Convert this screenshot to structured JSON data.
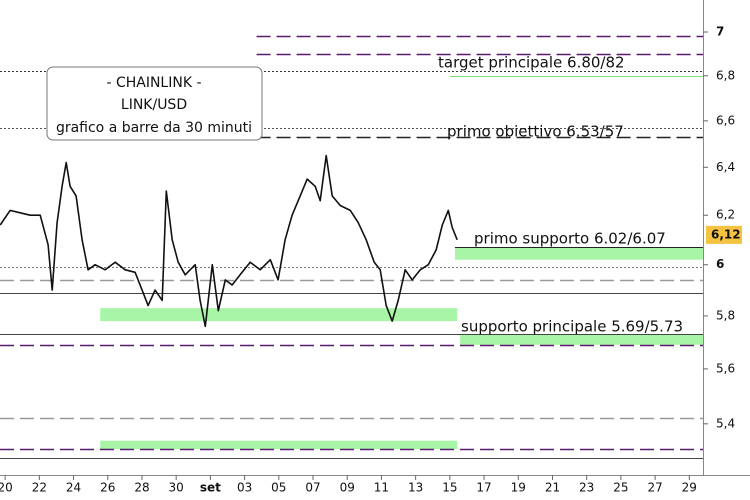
{
  "chart_data": {
    "type": "line",
    "title_box": [
      "- CHAINLINK -",
      "LINK/USD",
      "grafico a barre da 30 minuti"
    ],
    "annotations": [
      "target principale 6.80/82",
      "primo obiettivo 6.53/57",
      "primo supporto 6.02/6.07",
      "supporto principale 5.69/5.73"
    ],
    "log_scale": true,
    "xlim": [
      -0.3,
      40.8
    ],
    "xticks": [
      {
        "value": 0,
        "label": "20"
      },
      {
        "value": 2,
        "label": "22"
      },
      {
        "value": 4,
        "label": "24"
      },
      {
        "value": 6,
        "label": "26"
      },
      {
        "value": 8,
        "label": "28"
      },
      {
        "value": 10,
        "label": "30"
      },
      {
        "value": 12,
        "label": "set"
      },
      {
        "value": 14,
        "label": "03"
      },
      {
        "value": 16,
        "label": "05"
      },
      {
        "value": 18,
        "label": "07"
      },
      {
        "value": 20,
        "label": "09"
      },
      {
        "value": 22,
        "label": "11"
      },
      {
        "value": 24,
        "label": "13"
      },
      {
        "value": 26,
        "label": "15"
      },
      {
        "value": 28,
        "label": "17"
      },
      {
        "value": 30,
        "label": "19"
      },
      {
        "value": 32,
        "label": "21"
      },
      {
        "value": 34,
        "label": "23"
      },
      {
        "value": 36,
        "label": "25"
      },
      {
        "value": 38,
        "label": "27"
      },
      {
        "value": 40,
        "label": "29"
      }
    ],
    "ylim": [
      5.22,
      7.15
    ],
    "yticks": [
      {
        "value": 5.4,
        "label": "5,4"
      },
      {
        "value": 5.6,
        "label": "5,6"
      },
      {
        "value": 5.8,
        "label": "5,8"
      },
      6,
      {
        "value": 6.2,
        "label": "6,2"
      },
      {
        "value": 6.4,
        "label": "6,4"
      },
      {
        "value": 6.6,
        "label": "6,6"
      },
      {
        "value": 6.8,
        "label": "6,8"
      },
      7
    ],
    "last_price": {
      "value": 6.12,
      "label": "6,12"
    },
    "series": [
      {
        "color": "#111111",
        "x": [
          -0.29,
          0.29,
          0.88,
          1.46,
          2.05,
          2.51,
          2.75,
          3.04,
          3.33,
          3.57,
          3.8,
          4.15,
          4.5,
          4.85,
          5.26,
          5.85,
          6.43,
          7.02,
          7.6,
          8.01,
          8.36,
          8.77,
          9.18,
          9.42,
          9.77,
          10.12,
          10.53,
          11.11,
          11.4,
          11.7,
          12.11,
          12.46,
          12.87,
          13.27,
          13.74,
          14.33,
          14.91,
          15.5,
          15.96,
          16.37,
          16.78,
          17.25,
          17.66,
          18.13,
          18.42,
          18.77,
          19.12,
          19.59,
          20.18,
          20.64,
          21.11,
          21.58,
          21.93,
          22.28,
          22.63,
          22.98,
          23.39,
          23.8,
          24.27,
          24.74,
          25.2,
          25.56,
          25.91,
          26.14,
          26.43
        ],
        "values": [
          6.16,
          6.22,
          6.21,
          6.2,
          6.2,
          6.08,
          5.9,
          6.17,
          6.32,
          6.42,
          6.32,
          6.28,
          6.1,
          5.98,
          6.0,
          5.98,
          6.01,
          5.98,
          5.97,
          5.9,
          5.84,
          5.9,
          5.86,
          6.3,
          6.1,
          6.01,
          5.96,
          6.0,
          5.86,
          5.76,
          6.0,
          5.82,
          5.94,
          5.92,
          5.96,
          6.01,
          5.98,
          6.02,
          5.94,
          6.1,
          6.2,
          6.28,
          6.35,
          6.32,
          6.26,
          6.45,
          6.28,
          6.24,
          6.22,
          6.17,
          6.1,
          6.01,
          5.98,
          5.84,
          5.78,
          5.86,
          5.98,
          5.94,
          5.98,
          6.0,
          6.06,
          6.16,
          6.22,
          6.15,
          6.1
        ]
      }
    ],
    "levels": [
      {
        "value": 6.98,
        "color": "#5b1a6e",
        "style": "dash",
        "from": 14.7
      },
      {
        "value": 6.9,
        "color": "#5b1a6e",
        "style": "dash",
        "from": 14.7
      },
      {
        "value": 6.82,
        "color": "#333333",
        "style": "dot"
      },
      {
        "value": 6.8,
        "color": "#7ddc7d",
        "style": "solid",
        "from": 26.0
      },
      {
        "value": 6.57,
        "color": "#555555",
        "style": "dot"
      },
      {
        "value": 6.53,
        "color": "#222222",
        "style": "dash",
        "from": 14.7
      },
      {
        "value": 6.07,
        "color": "#222222",
        "style": "solid",
        "from": 26.3
      },
      {
        "value": 5.99,
        "color": "#777777",
        "style": "dot"
      },
      {
        "value": 5.94,
        "color": "#999999",
        "style": "dash"
      },
      {
        "value": 5.89,
        "color": "#444444",
        "style": "solid"
      },
      {
        "value": 5.73,
        "color": "#444444",
        "style": "solid"
      },
      {
        "value": 5.69,
        "color": "#5b1a6e",
        "style": "dash"
      },
      {
        "value": 5.42,
        "color": "#999999",
        "style": "dash"
      },
      {
        "value": 5.31,
        "color": "#5b1a6e",
        "style": "dash"
      },
      {
        "value": 5.28,
        "color": "#444444",
        "style": "solid"
      }
    ],
    "zones": [
      {
        "from": 6.02,
        "to": 6.07,
        "x": [
          26.3,
          40.8
        ],
        "color": "#a8f5a8"
      },
      {
        "from": 5.78,
        "to": 5.83,
        "x": [
          5.56,
          26.43
        ],
        "color": "#a8f5a8"
      },
      {
        "from": 5.69,
        "to": 5.73,
        "x": [
          26.6,
          40.8
        ],
        "color": "#a8f5a8"
      },
      {
        "from": 5.31,
        "to": 5.34,
        "x": [
          5.56,
          26.43
        ],
        "color": "#a8f5a8"
      }
    ]
  }
}
